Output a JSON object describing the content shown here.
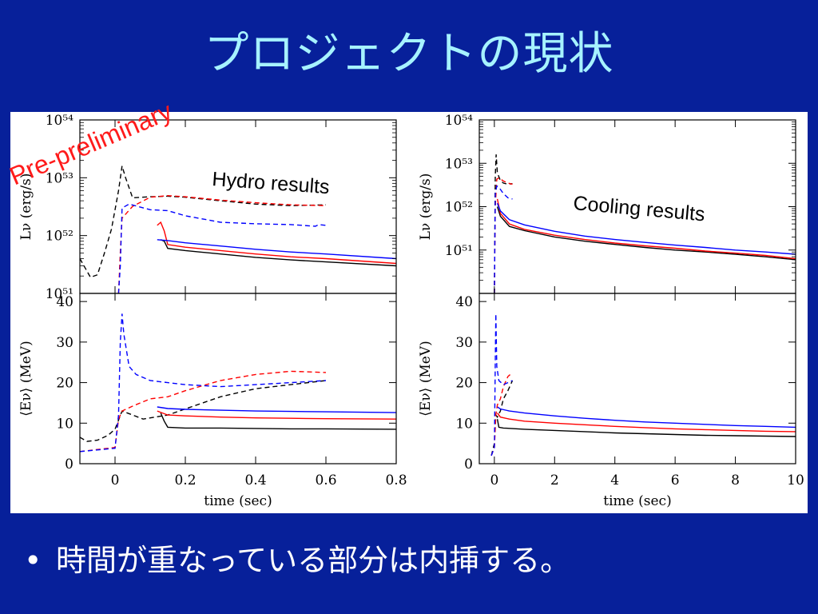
{
  "slide": {
    "title": "プロジェクトの現状",
    "bullet": "時間が重なっている部分は内挿する。",
    "bullet_symbol": "•"
  },
  "overlays": {
    "stamp": "Pre-preliminary",
    "stamp_color": "#ff1a1a",
    "hydro_label": "Hydro results",
    "cooling_label": "Cooling results"
  },
  "colors": {
    "background": "#07209a",
    "title": "#a6f2ff",
    "black_series": "#000000",
    "red_series": "#ff0000",
    "blue_series": "#0000ff"
  },
  "chart_data": [
    {
      "id": "hydro-luminosity",
      "type": "line",
      "xlim": [
        -0.1,
        0.8
      ],
      "ylim": [
        1e+51,
        1e+54
      ],
      "yscale": "log",
      "ylabel": "Lν (erg/s)",
      "xlabel": "",
      "yticks": [
        "10⁵¹",
        "10⁵²",
        "10⁵³",
        "10⁵⁴"
      ],
      "series": [
        {
          "color": "#000000",
          "dash": true,
          "x": [
            -0.1,
            -0.07,
            -0.05,
            -0.03,
            -0.01,
            0.01,
            0.02,
            0.03,
            0.05,
            0.1,
            0.15,
            0.2,
            0.3,
            0.4,
            0.5,
            0.6
          ],
          "y": [
            4e+51,
            1.9e+51,
            2.1e+51,
            5e+51,
            1.3e+52,
            6e+52,
            1.6e+53,
            1e+53,
            4.5e+52,
            4.7e+52,
            4.8e+52,
            4.6e+52,
            4e+52,
            3.5e+52,
            3.3e+52,
            3.4e+52
          ]
        },
        {
          "color": "#ff0000",
          "dash": true,
          "x": [
            0.01,
            0.015,
            0.02,
            0.05,
            0.1,
            0.15,
            0.2,
            0.3,
            0.4,
            0.5,
            0.6
          ],
          "y": [
            1e+51,
            5e+51,
            2e+52,
            3.2e+52,
            4.6e+52,
            4.9e+52,
            4.7e+52,
            4.1e+52,
            3.7e+52,
            3.4e+52,
            3.3e+52
          ]
        },
        {
          "color": "#0000ff",
          "dash": true,
          "x": [
            0.01,
            0.015,
            0.02,
            0.04,
            0.1,
            0.15,
            0.2,
            0.3,
            0.4,
            0.5,
            0.57,
            0.58,
            0.6
          ],
          "y": [
            1e+51,
            3e+51,
            3e+52,
            3.5e+52,
            2.8e+52,
            2.7e+52,
            2.2e+52,
            1.7e+52,
            1.6e+52,
            1.55e+52,
            1.45e+52,
            1.55e+52,
            1.5e+52
          ]
        },
        {
          "color": "#000000",
          "dash": false,
          "x": [
            0.13,
            0.14,
            0.15,
            0.2,
            0.3,
            0.4,
            0.5,
            0.6,
            0.8
          ],
          "y": [
            8.5e+51,
            8e+51,
            6e+51,
            5.5e+51,
            4.8e+51,
            4.2e+51,
            3.8e+51,
            3.5e+51,
            3e+51
          ]
        },
        {
          "color": "#ff0000",
          "dash": false,
          "x": [
            0.12,
            0.13,
            0.14,
            0.15,
            0.2,
            0.3,
            0.4,
            0.5,
            0.6,
            0.8
          ],
          "y": [
            1.5e+52,
            1.7e+52,
            1.2e+52,
            7e+51,
            6.3e+51,
            5.5e+51,
            4.8e+51,
            4.3e+51,
            4e+51,
            3.3e+51
          ]
        },
        {
          "color": "#0000ff",
          "dash": false,
          "x": [
            0.12,
            0.15,
            0.2,
            0.3,
            0.4,
            0.5,
            0.6,
            0.8
          ],
          "y": [
            8.5e+51,
            8.2e+51,
            7.5e+51,
            6.6e+51,
            5.8e+51,
            5.2e+51,
            4.8e+51,
            4e+51
          ]
        }
      ]
    },
    {
      "id": "hydro-energy",
      "type": "line",
      "xlim": [
        -0.1,
        0.8
      ],
      "ylim": [
        0,
        42
      ],
      "xlabel": "time (sec)",
      "ylabel": "⟨Eν⟩ (MeV)",
      "xticks": [
        "0",
        "0.2",
        "0.4",
        "0.6",
        "0.8"
      ],
      "yticks": [
        "0",
        "10",
        "20",
        "30",
        "40"
      ],
      "series": [
        {
          "color": "#000000",
          "dash": true,
          "x": [
            -0.1,
            -0.08,
            -0.05,
            -0.02,
            0.0,
            0.02,
            0.05,
            0.08,
            0.1,
            0.15,
            0.2,
            0.3,
            0.4,
            0.5,
            0.6
          ],
          "y": [
            6.5,
            5.5,
            5.8,
            7,
            8.5,
            13,
            12,
            11,
            11.3,
            12,
            13.5,
            16.5,
            18.5,
            19.5,
            20.5
          ]
        },
        {
          "color": "#ff0000",
          "dash": true,
          "x": [
            -0.1,
            0.0,
            0.01,
            0.02,
            0.05,
            0.1,
            0.15,
            0.2,
            0.3,
            0.4,
            0.5,
            0.6
          ],
          "y": [
            3,
            4,
            11,
            13,
            14.2,
            16,
            16.5,
            18,
            20.5,
            22,
            22.8,
            22.5
          ]
        },
        {
          "color": "#0000ff",
          "dash": true,
          "x": [
            -0.1,
            0.0,
            0.01,
            0.015,
            0.02,
            0.025,
            0.04,
            0.06,
            0.1,
            0.15,
            0.2,
            0.3,
            0.4,
            0.5,
            0.6
          ],
          "y": [
            3,
            3.8,
            12,
            30,
            37,
            32,
            24,
            22,
            20.5,
            20,
            19.5,
            19,
            19.5,
            20,
            20.5
          ]
        },
        {
          "color": "#000000",
          "dash": false,
          "x": [
            0.13,
            0.14,
            0.15,
            0.2,
            0.3,
            0.4,
            0.5,
            0.6,
            0.8
          ],
          "y": [
            12.5,
            10.5,
            9,
            8.8,
            8.8,
            8.7,
            8.6,
            8.6,
            8.5
          ]
        },
        {
          "color": "#ff0000",
          "dash": false,
          "x": [
            0.12,
            0.15,
            0.2,
            0.3,
            0.4,
            0.5,
            0.6,
            0.8
          ],
          "y": [
            13,
            12,
            11.8,
            11.5,
            11.3,
            11.2,
            11.1,
            11
          ]
        },
        {
          "color": "#0000ff",
          "dash": false,
          "x": [
            0.12,
            0.15,
            0.2,
            0.3,
            0.4,
            0.5,
            0.6,
            0.8
          ],
          "y": [
            14,
            13.6,
            13.4,
            13.2,
            13,
            12.9,
            12.8,
            12.6
          ]
        }
      ]
    },
    {
      "id": "cooling-luminosity",
      "type": "line",
      "xlim": [
        -0.5,
        10
      ],
      "ylim": [
        1e+50,
        1e+54
      ],
      "yscale": "log",
      "ylabel": "Lν (erg/s)",
      "xlabel": "",
      "yticks": [
        "10⁵¹",
        "10⁵²",
        "10⁵³",
        "10⁵⁴"
      ],
      "series": [
        {
          "color": "#000000",
          "dash": true,
          "x": [
            0,
            0.03,
            0.06,
            0.1,
            0.2,
            0.3,
            0.45,
            0.6
          ],
          "y": [
            1e+50,
            5e+52,
            1.6e+53,
            6e+52,
            4e+52,
            3.5e+52,
            3.3e+52,
            3.4e+52
          ]
        },
        {
          "color": "#ff0000",
          "dash": true,
          "x": [
            0,
            0.03,
            0.08,
            0.15,
            0.3,
            0.45,
            0.6
          ],
          "y": [
            1e+50,
            1e+52,
            4.3e+52,
            4.6e+52,
            3.9e+52,
            3.5e+52,
            3.3e+52
          ]
        },
        {
          "color": "#0000ff",
          "dash": true,
          "x": [
            0,
            0.03,
            0.08,
            0.15,
            0.3,
            0.45,
            0.6
          ],
          "y": [
            1e+50,
            2e+52,
            3e+52,
            2.8e+52,
            2e+52,
            1.6e+52,
            1.5e+52
          ]
        },
        {
          "color": "#000000",
          "dash": false,
          "x": [
            0.1,
            0.2,
            0.5,
            1,
            2,
            3,
            4,
            5,
            6,
            7,
            8,
            9,
            10
          ],
          "y": [
            1e+52,
            6e+51,
            3.5e+51,
            2.8e+51,
            2e+51,
            1.6e+51,
            1.35e+51,
            1.15e+51,
            1e+51,
            9e+50,
            8e+50,
            7e+50,
            6e+50
          ]
        },
        {
          "color": "#ff0000",
          "dash": false,
          "x": [
            0.1,
            0.2,
            0.5,
            1,
            2,
            3,
            4,
            5,
            6,
            7,
            8,
            9,
            10
          ],
          "y": [
            1.5e+52,
            7e+51,
            4e+51,
            3e+51,
            2.2e+51,
            1.75e+51,
            1.45e+51,
            1.25e+51,
            1.1e+51,
            9.5e+50,
            8.5e+50,
            7.5e+50,
            6.3e+50
          ]
        },
        {
          "color": "#0000ff",
          "dash": false,
          "x": [
            0.1,
            0.2,
            0.5,
            1,
            2,
            3,
            4,
            5,
            6,
            7,
            8,
            9,
            10
          ],
          "y": [
            1.2e+52,
            8e+51,
            5e+51,
            3.8e+51,
            2.7e+51,
            2.1e+51,
            1.75e+51,
            1.5e+51,
            1.3e+51,
            1.15e+51,
            1e+51,
            9e+50,
            8e+50
          ]
        }
      ]
    },
    {
      "id": "cooling-energy",
      "type": "line",
      "xlim": [
        -0.5,
        10
      ],
      "ylim": [
        0,
        42
      ],
      "xlabel": "time (sec)",
      "ylabel": "⟨Eν⟩ (MeV)",
      "xticks": [
        "0",
        "2",
        "4",
        "6",
        "8",
        "10"
      ],
      "yticks": [
        "0",
        "10",
        "20",
        "30",
        "40"
      ],
      "series": [
        {
          "color": "#000000",
          "dash": true,
          "x": [
            -0.1,
            0,
            0.05,
            0.1,
            0.2,
            0.3,
            0.45,
            0.6
          ],
          "y": [
            2,
            5,
            12,
            11.5,
            13,
            16,
            18,
            20.5
          ]
        },
        {
          "color": "#ff0000",
          "dash": true,
          "x": [
            -0.1,
            0,
            0.05,
            0.1,
            0.2,
            0.3,
            0.45,
            0.6
          ],
          "y": [
            2,
            4,
            12,
            14.5,
            16,
            19,
            21.5,
            22.5
          ]
        },
        {
          "color": "#0000ff",
          "dash": true,
          "x": [
            -0.1,
            0,
            0.03,
            0.05,
            0.08,
            0.15,
            0.3,
            0.45,
            0.6
          ],
          "y": [
            2,
            4,
            25,
            37,
            24,
            20.5,
            19.5,
            20,
            20.5
          ]
        },
        {
          "color": "#000000",
          "dash": false,
          "x": [
            0.1,
            0.15,
            0.3,
            1,
            2,
            3,
            4,
            5,
            6,
            7,
            8,
            9,
            10
          ],
          "y": [
            11,
            9,
            8.8,
            8.5,
            8.2,
            7.9,
            7.6,
            7.4,
            7.2,
            7,
            6.9,
            6.8,
            6.7
          ]
        },
        {
          "color": "#ff0000",
          "dash": false,
          "x": [
            0.1,
            0.2,
            0.5,
            1,
            2,
            3,
            4,
            5,
            6,
            7,
            8,
            9,
            10
          ],
          "y": [
            12.5,
            11.5,
            11,
            10.5,
            10,
            9.6,
            9.2,
            8.9,
            8.6,
            8.4,
            8.2,
            8,
            7.9
          ]
        },
        {
          "color": "#0000ff",
          "dash": false,
          "x": [
            0.1,
            0.2,
            0.5,
            1,
            2,
            3,
            4,
            5,
            6,
            7,
            8,
            9,
            10
          ],
          "y": [
            14,
            13.5,
            13,
            12.5,
            11.8,
            11.2,
            10.7,
            10.3,
            10,
            9.7,
            9.4,
            9.2,
            9
          ]
        }
      ]
    }
  ]
}
